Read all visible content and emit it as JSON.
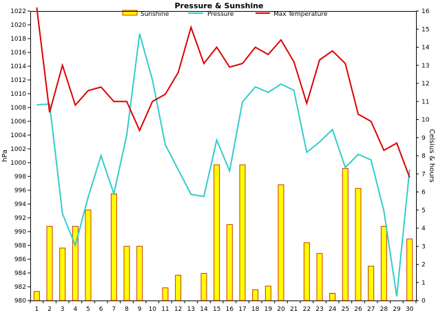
{
  "chart_data": {
    "type": "bar+line",
    "title": "Pressure & Sunshine",
    "ylabel_left": "hPa",
    "ylabel_right": "Celsius & hours",
    "ylim_left": [
      980,
      1022
    ],
    "ylim_right": [
      0,
      16
    ],
    "y_ticks_left": [
      980,
      982,
      984,
      986,
      988,
      990,
      992,
      994,
      996,
      998,
      1000,
      1002,
      1004,
      1006,
      1008,
      1010,
      1012,
      1014,
      1016,
      1018,
      1020,
      1022
    ],
    "y_ticks_right": [
      0,
      1,
      2,
      3,
      4,
      5,
      6,
      7,
      8,
      9,
      10,
      11,
      12,
      13,
      14,
      15,
      16
    ],
    "categories": [
      "1",
      "2",
      "3",
      "4",
      "5",
      "6",
      "7",
      "8",
      "9",
      "10",
      "11",
      "12",
      "13",
      "14",
      "15",
      "16",
      "17",
      "18",
      "19",
      "20",
      "21",
      "22",
      "23",
      "24",
      "25",
      "26",
      "27",
      "28",
      "29",
      "30"
    ],
    "legend_position": "top",
    "series": [
      {
        "name": "Sunshine",
        "type": "bar",
        "axis": "right",
        "color": "#ffff00",
        "edge": "#cc3300",
        "values": [
          0.5,
          4.1,
          2.9,
          4.1,
          5.0,
          0,
          5.9,
          3.0,
          3.0,
          0,
          0.7,
          1.4,
          0,
          1.5,
          7.5,
          4.2,
          7.5,
          0.6,
          0.8,
          6.4,
          0,
          3.2,
          2.6,
          0.4,
          7.3,
          6.2,
          1.9,
          4.1,
          0,
          3.4
        ]
      },
      {
        "name": "Pressure",
        "type": "line",
        "axis": "left",
        "color": "#33cccc",
        "values": [
          1008.4,
          1008.5,
          992.6,
          988.0,
          995.0,
          1001.0,
          995.5,
          1004.0,
          1018.7,
          1012.0,
          1002.6,
          999.0,
          995.4,
          995.1,
          1003.3,
          998.8,
          1008.8,
          1011.0,
          1010.2,
          1011.4,
          1010.5,
          1001.5,
          1003.0,
          1004.8,
          999.3,
          1001.2,
          1000.4,
          993.0,
          980.6,
          999.0
        ]
      },
      {
        "name": "Max Temperature",
        "type": "line",
        "axis": "right",
        "color": "#dd0000",
        "values": [
          16.2,
          10.4,
          13.0,
          10.8,
          11.6,
          11.8,
          11.0,
          11.0,
          9.4,
          11.0,
          11.4,
          12.6,
          15.1,
          13.1,
          14.0,
          12.9,
          13.1,
          14.0,
          13.6,
          14.4,
          13.2,
          10.9,
          13.3,
          13.8,
          13.1,
          10.3,
          9.9,
          8.3,
          8.7,
          6.8
        ]
      }
    ]
  }
}
